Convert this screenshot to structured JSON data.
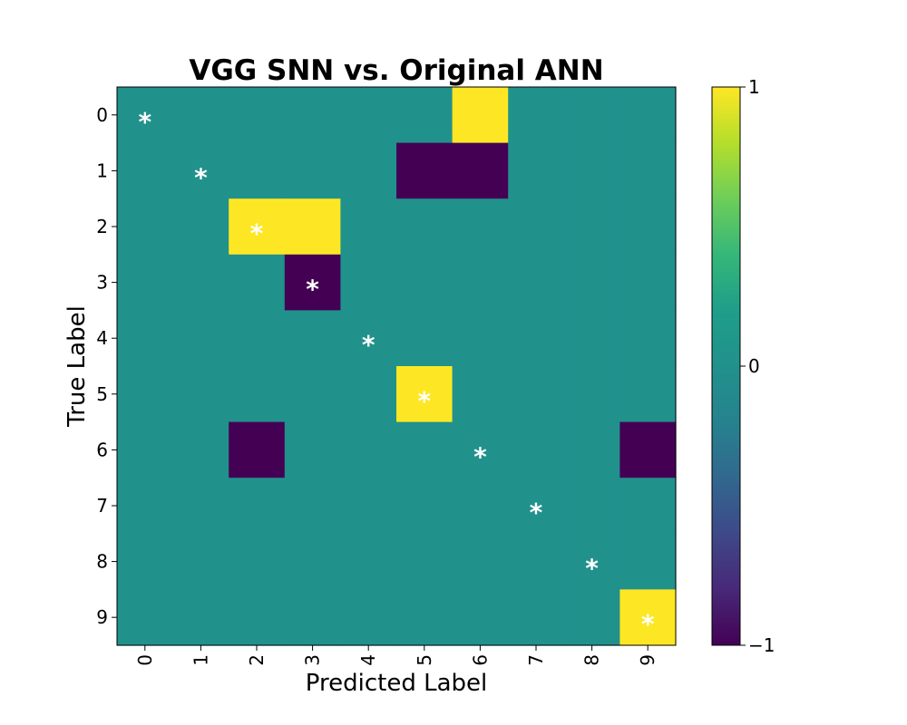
{
  "chart_data": {
    "type": "heatmap",
    "title": "VGG SNN vs. Original ANN",
    "xlabel": "Predicted Label",
    "ylabel": "True Label",
    "x_tick_labels": [
      "0",
      "1",
      "2",
      "3",
      "4",
      "5",
      "6",
      "7",
      "8",
      "9"
    ],
    "y_tick_labels": [
      "0",
      "1",
      "2",
      "3",
      "4",
      "5",
      "6",
      "7",
      "8",
      "9"
    ],
    "values": [
      [
        0,
        0,
        0,
        0,
        0,
        0,
        1,
        0,
        0,
        0
      ],
      [
        0,
        0,
        0,
        0,
        0,
        -1,
        -1,
        0,
        0,
        0
      ],
      [
        0,
        0,
        1,
        1,
        0,
        0,
        0,
        0,
        0,
        0
      ],
      [
        0,
        0,
        0,
        -1,
        0,
        0,
        0,
        0,
        0,
        0
      ],
      [
        0,
        0,
        0,
        0,
        0,
        0,
        0,
        0,
        0,
        0
      ],
      [
        0,
        0,
        0,
        0,
        0,
        1,
        0,
        0,
        0,
        0
      ],
      [
        0,
        0,
        -1,
        0,
        0,
        0,
        0,
        0,
        0,
        -1
      ],
      [
        0,
        0,
        0,
        0,
        0,
        0,
        0,
        0,
        0,
        0
      ],
      [
        0,
        0,
        0,
        0,
        0,
        0,
        0,
        0,
        0,
        0
      ],
      [
        0,
        0,
        0,
        0,
        0,
        0,
        0,
        0,
        0,
        1
      ]
    ],
    "marker": "*",
    "marked_cells": "diagonal",
    "colormap": "viridis",
    "color_range": [
      -1,
      1
    ],
    "colorbar": {
      "ticks": [
        -1,
        0,
        1
      ],
      "tick_labels": [
        "−1",
        "0",
        "1"
      ],
      "placement": "right"
    },
    "grid": false,
    "colors": {
      "low": "#440154",
      "mid": "#21918c",
      "high": "#fde725",
      "marker": "#ffffff"
    }
  }
}
